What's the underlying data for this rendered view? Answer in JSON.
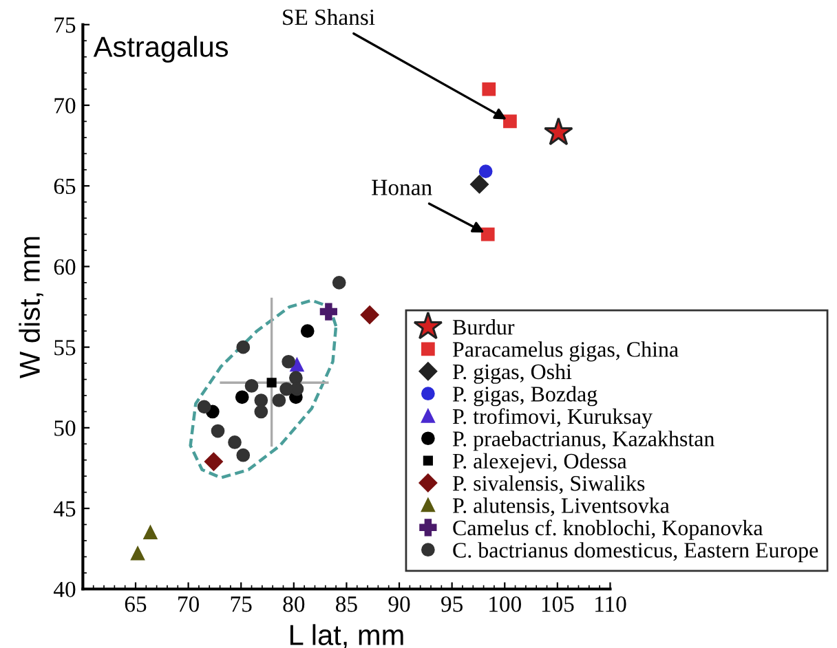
{
  "chart_data": {
    "type": "scatter",
    "title": "Astragalus",
    "xlabel": "L lat, mm",
    "ylabel": "W dist, mm",
    "xlim": [
      60,
      110
    ],
    "ylim": [
      40,
      75
    ],
    "xticks": [
      65,
      70,
      75,
      80,
      85,
      90,
      95,
      100,
      105,
      110
    ],
    "yticks": [
      40,
      45,
      50,
      55,
      60,
      65,
      70,
      75
    ],
    "grid": false,
    "legend": "bottom right",
    "annotations": [
      {
        "text": "SE Shansi",
        "x": 100.5,
        "y": 69.0
      },
      {
        "text": "Honan",
        "x": 98.4,
        "y": 62.0
      }
    ],
    "series": [
      {
        "name": "Burdur",
        "marker": "star",
        "color": "#d42020",
        "x": [
          105.1
        ],
        "values": [
          68.3
        ]
      },
      {
        "name": "Paracamelus gigas, China",
        "marker": "square",
        "color": "#e03030",
        "x": [
          98.5,
          100.5,
          98.4
        ],
        "values": [
          71.0,
          69.0,
          62.0
        ]
      },
      {
        "name": "P. gigas, Oshi",
        "marker": "diamond",
        "color": "#222222",
        "x": [
          97.6
        ],
        "values": [
          65.1
        ]
      },
      {
        "name": "P. gigas, Bozdag",
        "marker": "circle",
        "color": "#2a2ad8",
        "x": [
          98.2
        ],
        "values": [
          65.9
        ]
      },
      {
        "name": "P. trofimovi, Kuruksay",
        "marker": "triangle",
        "color": "#4a2ad0",
        "x": [
          80.3
        ],
        "values": [
          53.9
        ]
      },
      {
        "name": "P. praebactrianus, Kazakhstan",
        "marker": "circle",
        "color": "#000000",
        "x": [
          81.3,
          72.3,
          75.1,
          80.2
        ],
        "values": [
          56.0,
          51.0,
          51.9,
          51.9
        ]
      },
      {
        "name": "P. alexejevi, Odessa",
        "marker": "square",
        "color": "#000000",
        "x": [
          77.9
        ],
        "values": [
          52.8
        ],
        "xerrors": [
          [
            73.1,
            83.2
          ]
        ],
        "errors": [
          [
            48.9,
            58.0
          ]
        ]
      },
      {
        "name": "P. sivalensis, Siwaliks",
        "marker": "diamond",
        "color": "#7a1010",
        "x": [
          87.2,
          72.4
        ],
        "values": [
          57.0,
          47.9
        ]
      },
      {
        "name": "P. alutensis, Liventsovka",
        "marker": "triangle",
        "color": "#5a5a10",
        "x": [
          66.4,
          65.2
        ],
        "values": [
          43.5,
          42.2
        ]
      },
      {
        "name": "Camelus cf. knoblochi, Kopanovka",
        "marker": "cross",
        "color": "#4a1a6a",
        "x": [
          83.3
        ],
        "values": [
          57.2
        ]
      },
      {
        "name": "C. bactrianus domesticus, Eastern Europe",
        "marker": "circle",
        "color": "#333333",
        "x": [
          84.3,
          75.2,
          79.5,
          80.2,
          76.0,
          79.3,
          80.3,
          78.6,
          76.9,
          76.9,
          71.5,
          72.8,
          74.4,
          75.2
        ],
        "values": [
          59.0,
          55.0,
          54.1,
          53.1,
          52.6,
          52.4,
          52.4,
          51.7,
          51.7,
          51.0,
          51.3,
          49.8,
          49.1,
          48.3
        ]
      }
    ]
  }
}
